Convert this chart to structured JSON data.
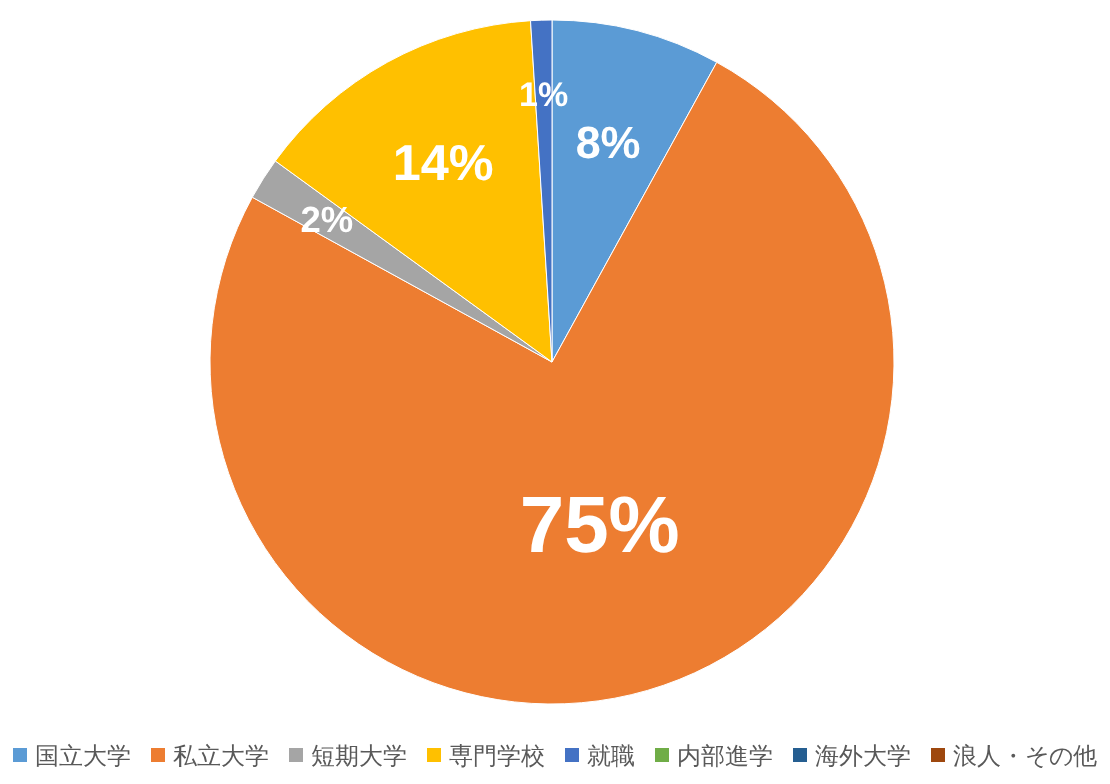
{
  "chart_data": {
    "type": "pie",
    "categories": [
      "国立大学",
      "私立大学",
      "短期大学",
      "専門学校",
      "就職",
      "内部進学",
      "海外大学",
      "浪人・その他"
    ],
    "values": [
      8,
      75,
      2,
      14,
      1,
      0,
      0,
      0
    ],
    "colors": [
      "#5b9bd5",
      "#ed7d31",
      "#a5a5a5",
      "#ffc000",
      "#4472c4",
      "#70ad47",
      "#255e91",
      "#9e480e"
    ],
    "value_labels": [
      "8%",
      "75%",
      "2%",
      "14%",
      "1%",
      null,
      null,
      null
    ],
    "legend": "bottom"
  }
}
